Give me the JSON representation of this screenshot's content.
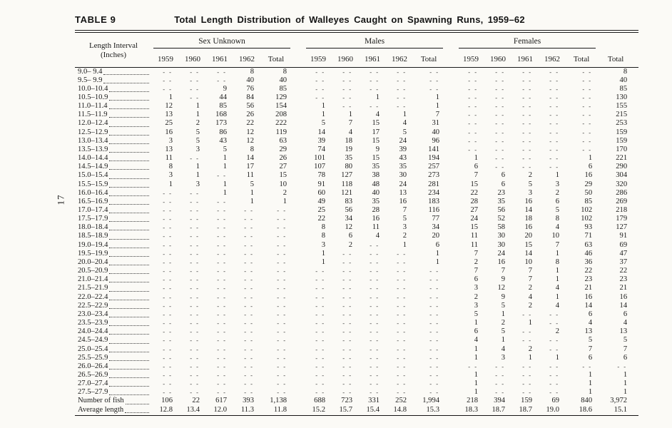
{
  "page": {
    "number": "17"
  },
  "caption": {
    "label": "TABLE 9",
    "title": "Total Length Distribution of Walleyes Caught on Spawning Runs, 1959–62"
  },
  "header": {
    "row_header_line1": "Length Interval",
    "row_header_line2": "(Inches)",
    "groups": [
      {
        "name": "Sex Unknown",
        "columns": [
          "1959",
          "1960",
          "1961",
          "1962",
          "Total"
        ]
      },
      {
        "name": "Males",
        "columns": [
          "1959",
          "1960",
          "1961",
          "1962",
          "Total"
        ]
      },
      {
        "name": "Females",
        "columns": [
          "1959",
          "1960",
          "1961",
          "1962",
          "Total"
        ]
      }
    ],
    "grand_total": "Total"
  },
  "empty_marker": "- -",
  "rows": [
    {
      "interval": "9.0– 9.4",
      "values": [
        "",
        "",
        "",
        "8",
        "8",
        "",
        "",
        "",
        "",
        "",
        "",
        "",
        "",
        "",
        "",
        "8"
      ]
    },
    {
      "interval": "9.5– 9.9",
      "values": [
        "",
        "",
        "",
        "40",
        "40",
        "",
        "",
        "",
        "",
        "",
        "",
        "",
        "",
        "",
        "",
        "40"
      ]
    },
    {
      "interval": "10.0–10.4",
      "values": [
        "",
        "",
        "9",
        "76",
        "85",
        "",
        "",
        "",
        "",
        "",
        "",
        "",
        "",
        "",
        "",
        "85"
      ]
    },
    {
      "interval": "10.5–10.9",
      "values": [
        "1",
        "",
        "44",
        "84",
        "129",
        "",
        "",
        "1",
        "",
        "1",
        "",
        "",
        "",
        "",
        "",
        "130"
      ]
    },
    {
      "interval": "11.0–11.4",
      "values": [
        "12",
        "1",
        "85",
        "56",
        "154",
        "1",
        "",
        "",
        "",
        "1",
        "",
        "",
        "",
        "",
        "",
        "155"
      ]
    },
    {
      "interval": "11.5–11.9",
      "values": [
        "13",
        "1",
        "168",
        "26",
        "208",
        "1",
        "1",
        "4",
        "1",
        "7",
        "",
        "",
        "",
        "",
        "",
        "215"
      ]
    },
    {
      "interval": "12.0–12.4",
      "values": [
        "25",
        "2",
        "173",
        "22",
        "222",
        "5",
        "7",
        "15",
        "4",
        "31",
        "",
        "",
        "",
        "",
        "",
        "253"
      ]
    },
    {
      "interval": "12.5–12.9",
      "values": [
        "16",
        "5",
        "86",
        "12",
        "119",
        "14",
        "4",
        "17",
        "5",
        "40",
        "",
        "",
        "",
        "",
        "",
        "159"
      ]
    },
    {
      "interval": "13.0–13.4",
      "values": [
        "3",
        "5",
        "43",
        "12",
        "63",
        "39",
        "18",
        "15",
        "24",
        "96",
        "",
        "",
        "",
        "",
        "",
        "159"
      ]
    },
    {
      "interval": "13.5–13.9",
      "values": [
        "13",
        "3",
        "5",
        "8",
        "29",
        "74",
        "19",
        "9",
        "39",
        "141",
        "",
        "",
        "",
        "",
        "",
        "170"
      ]
    },
    {
      "interval": "14.0–14.4",
      "values": [
        "11",
        "",
        "1",
        "14",
        "26",
        "101",
        "35",
        "15",
        "43",
        "194",
        "1",
        "",
        "",
        "",
        "1",
        "221"
      ]
    },
    {
      "interval": "14.5–14.9",
      "values": [
        "8",
        "1",
        "1",
        "17",
        "27",
        "107",
        "80",
        "35",
        "35",
        "257",
        "6",
        "",
        "",
        "",
        "6",
        "290"
      ]
    },
    {
      "interval": "15.0–15.4",
      "values": [
        "3",
        "1",
        "",
        "11",
        "15",
        "78",
        "127",
        "38",
        "30",
        "273",
        "7",
        "6",
        "2",
        "1",
        "16",
        "304"
      ]
    },
    {
      "interval": "15.5–15.9",
      "values": [
        "1",
        "3",
        "1",
        "5",
        "10",
        "91",
        "118",
        "48",
        "24",
        "281",
        "15",
        "6",
        "5",
        "3",
        "29",
        "320"
      ]
    },
    {
      "interval": "16.0–16.4",
      "values": [
        "",
        "",
        "1",
        "1",
        "2",
        "60",
        "121",
        "40",
        "13",
        "234",
        "22",
        "23",
        "3",
        "2",
        "50",
        "286"
      ]
    },
    {
      "interval": "16.5–16.9",
      "values": [
        "",
        "",
        "",
        "1",
        "1",
        "49",
        "83",
        "35",
        "16",
        "183",
        "28",
        "35",
        "16",
        "6",
        "85",
        "269"
      ]
    },
    {
      "interval": "17.0–17.4",
      "values": [
        "",
        "",
        "",
        "",
        "",
        "25",
        "56",
        "28",
        "7",
        "116",
        "27",
        "56",
        "14",
        "5",
        "102",
        "218"
      ]
    },
    {
      "interval": "17.5–17.9",
      "values": [
        "",
        "",
        "",
        "",
        "",
        "22",
        "34",
        "16",
        "5",
        "77",
        "24",
        "52",
        "18",
        "8",
        "102",
        "179"
      ]
    },
    {
      "interval": "18.0–18.4",
      "values": [
        "",
        "",
        "",
        "",
        "",
        "8",
        "12",
        "11",
        "3",
        "34",
        "15",
        "58",
        "16",
        "4",
        "93",
        "127"
      ]
    },
    {
      "interval": "18.5–18.9",
      "values": [
        "",
        "",
        "",
        "",
        "",
        "8",
        "6",
        "4",
        "2",
        "20",
        "11",
        "30",
        "20",
        "10",
        "71",
        "91"
      ]
    },
    {
      "interval": "19.0–19.4",
      "values": [
        "",
        "",
        "",
        "",
        "",
        "3",
        "2",
        "",
        "1",
        "6",
        "11",
        "30",
        "15",
        "7",
        "63",
        "69"
      ]
    },
    {
      "interval": "19.5–19.9",
      "values": [
        "",
        "",
        "",
        "",
        "",
        "1",
        "",
        "",
        "",
        "1",
        "7",
        "24",
        "14",
        "1",
        "46",
        "47"
      ]
    },
    {
      "interval": "20.0–20.4",
      "values": [
        "",
        "",
        "",
        "",
        "",
        "1",
        "",
        "",
        "",
        "1",
        "2",
        "16",
        "10",
        "8",
        "36",
        "37"
      ]
    },
    {
      "interval": "20.5–20.9",
      "values": [
        "",
        "",
        "",
        "",
        "",
        "",
        "",
        "",
        "",
        "",
        "7",
        "7",
        "7",
        "1",
        "22",
        "22"
      ]
    },
    {
      "interval": "21.0–21.4",
      "values": [
        "",
        "",
        "",
        "",
        "",
        "",
        "",
        "",
        "",
        "",
        "6",
        "9",
        "7",
        "1",
        "23",
        "23"
      ]
    },
    {
      "interval": "21.5–21.9",
      "values": [
        "",
        "",
        "",
        "",
        "",
        "",
        "",
        "",
        "",
        "",
        "3",
        "12",
        "2",
        "4",
        "21",
        "21"
      ]
    },
    {
      "interval": "22.0–22.4",
      "values": [
        "",
        "",
        "",
        "",
        "",
        "",
        "",
        "",
        "",
        "",
        "2",
        "9",
        "4",
        "1",
        "16",
        "16"
      ]
    },
    {
      "interval": "22.5–22.9",
      "values": [
        "",
        "",
        "",
        "",
        "",
        "",
        "",
        "",
        "",
        "",
        "3",
        "5",
        "2",
        "4",
        "14",
        "14"
      ]
    },
    {
      "interval": "23.0–23.4",
      "values": [
        "",
        "",
        "",
        "",
        "",
        "",
        "",
        "",
        "",
        "",
        "5",
        "1",
        "",
        "",
        "6",
        "6"
      ]
    },
    {
      "interval": "23.5–23.9",
      "values": [
        "",
        "",
        "",
        "",
        "",
        "",
        "",
        "",
        "",
        "",
        "1",
        "2",
        "1",
        "",
        "4",
        "4"
      ]
    },
    {
      "interval": "24.0–24.4",
      "values": [
        "",
        "",
        "",
        "",
        "",
        "",
        "",
        "",
        "",
        "",
        "6",
        "5",
        "",
        "2",
        "13",
        "13"
      ]
    },
    {
      "interval": "24.5–24.9",
      "values": [
        "",
        "",
        "",
        "",
        "",
        "",
        "",
        "",
        "",
        "",
        "4",
        "1",
        "",
        "",
        "5",
        "5"
      ]
    },
    {
      "interval": "25.0–25.4",
      "values": [
        "",
        "",
        "",
        "",
        "",
        "",
        "",
        "",
        "",
        "",
        "1",
        "4",
        "2",
        "",
        "7",
        "7"
      ]
    },
    {
      "interval": "25.5–25.9",
      "values": [
        "",
        "",
        "",
        "",
        "",
        "",
        "",
        "",
        "",
        "",
        "1",
        "3",
        "1",
        "1",
        "6",
        "6"
      ]
    },
    {
      "interval": "26.0–26.4",
      "values": [
        "",
        "",
        "",
        "",
        "",
        "",
        "",
        "",
        "",
        "",
        "",
        "",
        "",
        "",
        "",
        ""
      ]
    },
    {
      "interval": "26.5–26.9",
      "values": [
        "",
        "",
        "",
        "",
        "",
        "",
        "",
        "",
        "",
        "",
        "1",
        "",
        "",
        "",
        "1",
        "1"
      ]
    },
    {
      "interval": "27.0–27.4",
      "values": [
        "",
        "",
        "",
        "",
        "",
        "",
        "",
        "",
        "",
        "",
        "1",
        "",
        "",
        "",
        "1",
        "1"
      ]
    },
    {
      "interval": "27.5–27.9",
      "values": [
        "",
        "",
        "",
        "",
        "",
        "",
        "",
        "",
        "",
        "",
        "1",
        "",
        "",
        "",
        "1",
        "1"
      ]
    }
  ],
  "summary_rows": [
    {
      "label": "Number of fish",
      "values": [
        "106",
        "22",
        "617",
        "393",
        "1,138",
        "688",
        "723",
        "331",
        "252",
        "1,994",
        "218",
        "394",
        "159",
        "69",
        "840",
        "3,972"
      ]
    },
    {
      "label": "Average length",
      "values": [
        "12.8",
        "13.4",
        "12.0",
        "11.3",
        "11.8",
        "15.2",
        "15.7",
        "15.4",
        "14.8",
        "15.3",
        "18.3",
        "18.7",
        "18.7",
        "19.0",
        "18.6",
        "15.1"
      ]
    }
  ]
}
